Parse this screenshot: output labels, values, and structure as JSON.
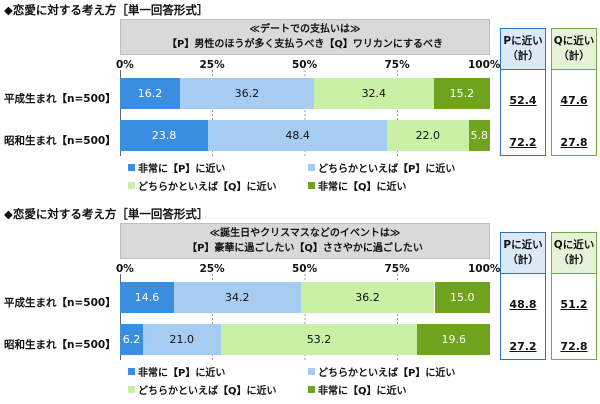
{
  "chart_data": [
    {
      "type": "bar",
      "orientation": "horizontal",
      "stacked": true,
      "section_title": "◆恋愛に対する考え方［単一回答形式］",
      "question_line1": "≪デートでの支払いは≫",
      "question_line2": "【P】男性のほうが多く支払うべき【Q】ワリカンにするべき",
      "xlim": [
        0,
        100
      ],
      "ticks": [
        "0%",
        "25%",
        "50%",
        "75%",
        "100%"
      ],
      "categories": [
        "平成生まれ【n=500】",
        "昭和生まれ【n=500】"
      ],
      "series": [
        {
          "name": "非常に【P】に近い",
          "values": [
            16.2,
            23.8
          ]
        },
        {
          "name": "どちらかといえば【P】に近い",
          "values": [
            36.2,
            48.4
          ]
        },
        {
          "name": "どちらかといえば【Q】に近い",
          "values": [
            32.4,
            22.0
          ]
        },
        {
          "name": "非常に【Q】に近い",
          "values": [
            15.2,
            5.8
          ]
        }
      ],
      "value_labels": [
        [
          "16.2",
          "36.2",
          "32.4",
          "15.2"
        ],
        [
          "23.8",
          "48.4",
          "22.0",
          "5.8"
        ]
      ],
      "p_header": [
        "Pに近い",
        "（計）"
      ],
      "q_header": [
        "Qに近い",
        "（計）"
      ],
      "p_totals": [
        "52.4",
        "72.2"
      ],
      "q_totals": [
        "47.6",
        "27.8"
      ]
    },
    {
      "type": "bar",
      "orientation": "horizontal",
      "stacked": true,
      "section_title": "◆恋愛に対する考え方［単一回答形式］",
      "question_line1": "≪誕生日やクリスマスなどのイベントは≫",
      "question_line2": "【P】豪華に過ごしたい【Q】ささやかに過ごしたい",
      "xlim": [
        0,
        100
      ],
      "ticks": [
        "0%",
        "25%",
        "50%",
        "75%",
        "100%"
      ],
      "categories": [
        "平成生まれ【n=500】",
        "昭和生まれ【n=500】"
      ],
      "series": [
        {
          "name": "非常に【P】に近い",
          "values": [
            14.6,
            6.2
          ]
        },
        {
          "name": "どちらかといえば【P】に近い",
          "values": [
            34.2,
            21.0
          ]
        },
        {
          "name": "どちらかといえば【Q】に近い",
          "values": [
            36.2,
            53.2
          ]
        },
        {
          "name": "非常に【Q】に近い",
          "values": [
            15.0,
            19.6
          ]
        }
      ],
      "value_labels": [
        [
          "14.6",
          "34.2",
          "36.2",
          "15.0"
        ],
        [
          "6.2",
          "21.0",
          "53.2",
          "19.6"
        ]
      ],
      "p_header": [
        "Pに近い",
        "（計）"
      ],
      "q_header": [
        "Qに近い",
        "（計）"
      ],
      "p_totals": [
        "48.8",
        "27.2"
      ],
      "q_totals": [
        "51.2",
        "72.8"
      ]
    }
  ],
  "colors": [
    "#3a8ee0",
    "#a7ccf2",
    "#c9f0a4",
    "#6fa31e"
  ],
  "text_colors": [
    "#ffffff",
    "#111111",
    "#111111",
    "#ffffff"
  ]
}
